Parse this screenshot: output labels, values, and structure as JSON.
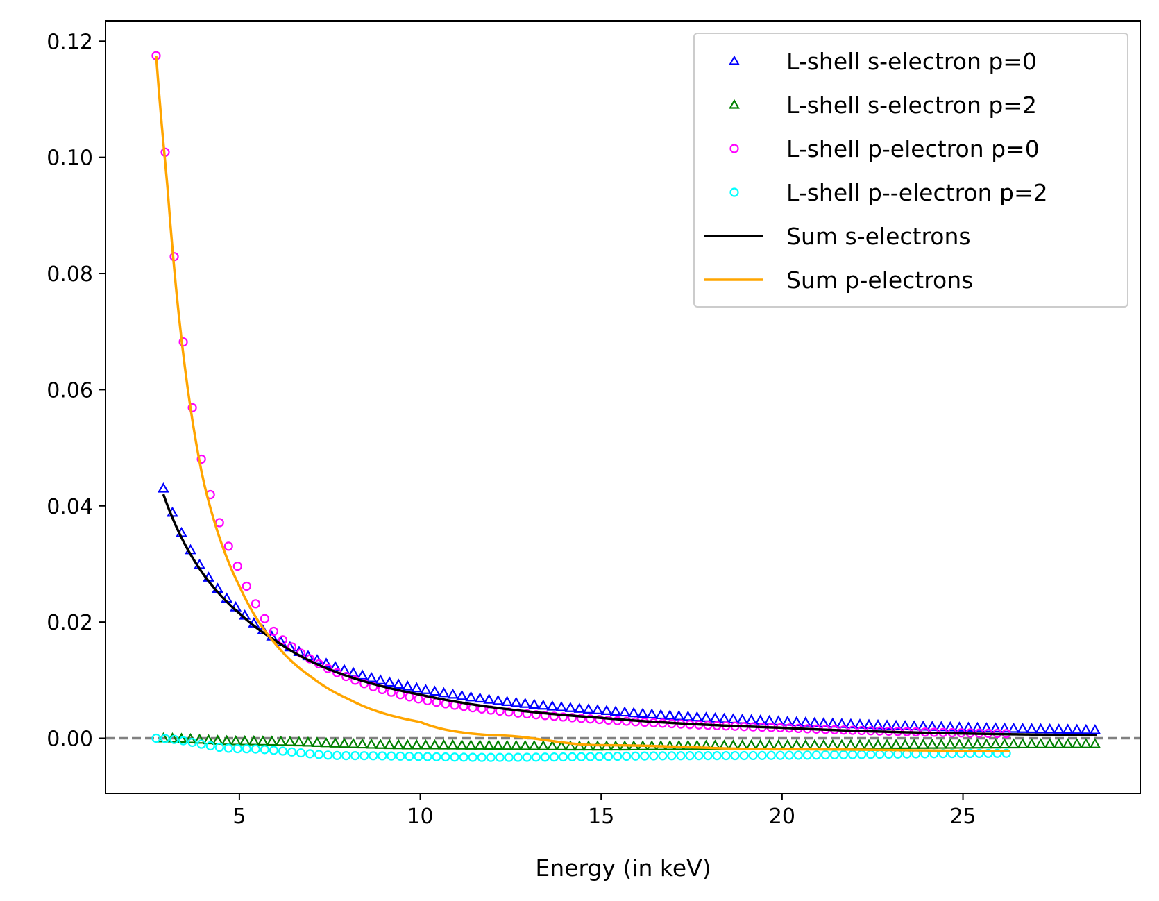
{
  "chart_data": {
    "type": "scatter",
    "title": "",
    "xlabel": "Energy (in keV)",
    "ylabel": "",
    "xlim": [
      1.3,
      29.9
    ],
    "ylim": [
      -0.0095,
      0.1235
    ],
    "x_ticks": [
      5,
      10,
      15,
      20,
      25
    ],
    "y_ticks": [
      0.0,
      0.02,
      0.04,
      0.06,
      0.08,
      0.1,
      0.12
    ],
    "x_tick_labels": [
      "5",
      "10",
      "15",
      "20",
      "25"
    ],
    "y_tick_labels": [
      "0.00",
      "0.02",
      "0.04",
      "0.06",
      "0.08",
      "0.10",
      "0.12"
    ],
    "grid": false,
    "reference_line": {
      "y": 0,
      "style": "dashed",
      "color": "#808080"
    },
    "legend": {
      "position": "top-right"
    },
    "series": [
      {
        "name": "L-shell s-electron p=0",
        "kind": "markers",
        "marker": "triangle",
        "color": "#0000ff",
        "x_start": 2.9,
        "x_end": 28.7,
        "x_step": 0.25,
        "values_desc": "y = 0.0447*(3/x)^1.42 ; fit read from plot",
        "anchors": [
          {
            "x": 2.9,
            "y": 0.043
          },
          {
            "x": 5.0,
            "y": 0.022
          },
          {
            "x": 10.0,
            "y": 0.0085
          },
          {
            "x": 15.0,
            "y": 0.0048
          },
          {
            "x": 20.0,
            "y": 0.0029
          },
          {
            "x": 28.7,
            "y": 0.0014
          }
        ]
      },
      {
        "name": "L-shell s-electron p=2",
        "kind": "markers",
        "marker": "triangle",
        "color": "#008000",
        "x_start": 2.9,
        "x_end": 28.7,
        "x_step": 0.25,
        "anchors": [
          {
            "x": 2.9,
            "y": 0.0
          },
          {
            "x": 5.0,
            "y": -0.0005
          },
          {
            "x": 10.0,
            "y": -0.0012
          },
          {
            "x": 15.0,
            "y": -0.0014
          },
          {
            "x": 20.0,
            "y": -0.0012
          },
          {
            "x": 28.7,
            "y": -0.001
          }
        ]
      },
      {
        "name": "L-shell p-electron p=0",
        "kind": "markers",
        "marker": "circle",
        "color": "#ff00ff",
        "x_start": 2.7,
        "x_end": 26.3,
        "x_step": 0.25,
        "anchors": [
          {
            "x": 2.7,
            "y": 0.1175
          },
          {
            "x": 3.0,
            "y": 0.098
          },
          {
            "x": 4.0,
            "y": 0.0465
          },
          {
            "x": 5.0,
            "y": 0.029
          },
          {
            "x": 6.0,
            "y": 0.018
          },
          {
            "x": 8.0,
            "y": 0.0105
          },
          {
            "x": 10.0,
            "y": 0.0067
          },
          {
            "x": 15.0,
            "y": 0.0032
          },
          {
            "x": 20.0,
            "y": 0.0018
          },
          {
            "x": 26.3,
            "y": 0.0008
          }
        ]
      },
      {
        "name": "L-shell p--electron p=2",
        "kind": "markers",
        "marker": "circle",
        "color": "#00ffff",
        "x_start": 2.7,
        "x_end": 26.3,
        "x_step": 0.25,
        "anchors": [
          {
            "x": 2.7,
            "y": 0.0
          },
          {
            "x": 5.0,
            "y": -0.0018
          },
          {
            "x": 8.0,
            "y": -0.003
          },
          {
            "x": 12.0,
            "y": -0.0033
          },
          {
            "x": 18.0,
            "y": -0.003
          },
          {
            "x": 26.3,
            "y": -0.0026
          }
        ]
      },
      {
        "name": "Sum s-electrons",
        "kind": "line",
        "color": "#000000",
        "x_start": 2.9,
        "x_end": 28.7,
        "anchors": [
          {
            "x": 2.9,
            "y": 0.042
          },
          {
            "x": 5.0,
            "y": 0.0215
          },
          {
            "x": 6.0,
            "y": 0.0168
          },
          {
            "x": 10.0,
            "y": 0.0075
          },
          {
            "x": 15.0,
            "y": 0.0035
          },
          {
            "x": 20.0,
            "y": 0.0018
          },
          {
            "x": 28.7,
            "y": 0.0005
          }
        ]
      },
      {
        "name": "Sum p-electrons",
        "kind": "line",
        "color": "#ffa500",
        "x_start": 2.7,
        "x_end": 26.3,
        "anchors": [
          {
            "x": 2.7,
            "y": 0.1175
          },
          {
            "x": 3.0,
            "y": 0.096
          },
          {
            "x": 4.0,
            "y": 0.0445
          },
          {
            "x": 5.0,
            "y": 0.0262
          },
          {
            "x": 6.0,
            "y": 0.0162
          },
          {
            "x": 7.0,
            "y": 0.0105
          },
          {
            "x": 8.0,
            "y": 0.0068
          },
          {
            "x": 10.0,
            "y": 0.0028
          },
          {
            "x": 12.0,
            "y": 0.0005
          },
          {
            "x": 15.0,
            "y": -0.0012
          },
          {
            "x": 20.0,
            "y": -0.0019
          },
          {
            "x": 26.3,
            "y": -0.0022
          }
        ]
      }
    ]
  }
}
